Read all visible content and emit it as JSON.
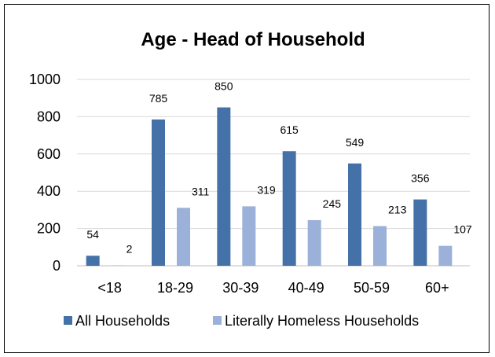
{
  "chart_data": {
    "type": "bar",
    "title": "Age - Head of Household",
    "xlabel": "",
    "ylabel": "",
    "categories": [
      "<18",
      "18-29",
      "30-39",
      "40-49",
      "50-59",
      "60+"
    ],
    "series": [
      {
        "name": "All Households",
        "values": [
          54,
          785,
          850,
          615,
          549,
          356
        ],
        "color": "#4472A8"
      },
      {
        "name": "Literally Homeless Households",
        "values": [
          2,
          311,
          319,
          245,
          213,
          107
        ],
        "color": "#9BB1D9"
      }
    ],
    "ylim": [
      0,
      1000
    ],
    "yticks": [
      0,
      200,
      400,
      600,
      800,
      1000
    ],
    "grid": true,
    "legend_position": "bottom",
    "data_labels": true,
    "colors": {
      "gridline": "#D9D9D9",
      "axis": "#BFBFBF",
      "text": "#000000"
    }
  }
}
